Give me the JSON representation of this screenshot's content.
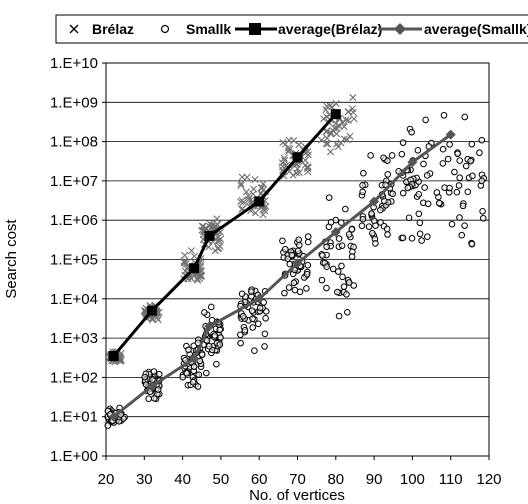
{
  "chart_data": {
    "type": "scatter",
    "title": "",
    "xlabel": "No. of vertices",
    "ylabel": "Search cost",
    "y_scale": "log",
    "xlim": [
      20,
      120
    ],
    "ylim": [
      1,
      10000000000
    ],
    "x_ticks": [
      "20",
      "30",
      "40",
      "50",
      "60",
      "70",
      "80",
      "90",
      "100",
      "110",
      "120"
    ],
    "y_ticks": [
      "1.E+00",
      "1.E+01",
      "1.E+02",
      "1.E+03",
      "1.E+04",
      "1.E+05",
      "1.E+06",
      "1.E+07",
      "1.E+08",
      "1.E+09",
      "1.E+10"
    ],
    "grid": "horizontal",
    "legend_position": "top",
    "series": [
      {
        "name": "Brélaz",
        "kind": "scatter",
        "marker": "x",
        "color": "#707070",
        "clusters": [
          {
            "x": [
              21,
              24
            ],
            "y_range": [
              200,
              500
            ]
          },
          {
            "x": [
              30,
              34
            ],
            "y_range": [
              2500,
              8000
            ]
          },
          {
            "x": [
              40,
              45
            ],
            "y_range": [
              15000,
              200000
            ]
          },
          {
            "x": [
              45,
              50
            ],
            "y_range": [
              100000,
              1500000
            ]
          },
          {
            "x": [
              55,
              62
            ],
            "y_range": [
              500000,
              20000000
            ]
          },
          {
            "x": [
              66,
              73
            ],
            "y_range": [
              5000000,
              200000000
            ]
          },
          {
            "x": [
              76,
              85
            ],
            "y_range": [
              20000000,
              3000000000
            ]
          }
        ]
      },
      {
        "name": "Smallk",
        "kind": "scatter",
        "marker": "o",
        "color": "#000000",
        "clusters": [
          {
            "x": [
              20,
              25
            ],
            "y_range": [
              5,
              20
            ]
          },
          {
            "x": [
              30,
              34
            ],
            "y_range": [
              20,
              200
            ]
          },
          {
            "x": [
              40,
              45
            ],
            "y_range": [
              30,
              2000
            ]
          },
          {
            "x": [
              45,
              50
            ],
            "y_range": [
              80,
              10000
            ]
          },
          {
            "x": [
              55,
              62
            ],
            "y_range": [
              300,
              100000
            ]
          },
          {
            "x": [
              66,
              73
            ],
            "y_range": [
              5000,
              1000000
            ]
          },
          {
            "x": [
              76,
              85
            ],
            "y_range": [
              2000,
              10000000
            ]
          },
          {
            "x": [
              86,
              95
            ],
            "y_range": [
              50000,
              200000000
            ]
          },
          {
            "x": [
              96,
              105
            ],
            "y_range": [
              100000,
              1000000000
            ]
          },
          {
            "x": [
              106,
              119
            ],
            "y_range": [
              50000,
              3000000000
            ]
          }
        ]
      },
      {
        "name": "average(Brélaz)",
        "kind": "line",
        "marker": "square",
        "color": "#000000",
        "x": [
          22,
          32,
          43,
          47,
          60,
          70,
          80
        ],
        "y": [
          350,
          5000,
          60000,
          400000,
          3000000,
          40000000,
          500000000
        ]
      },
      {
        "name": "average(Smallk)",
        "kind": "line",
        "marker": "diamond",
        "color": "#555555",
        "x": [
          22,
          32,
          43,
          47,
          60,
          70,
          80,
          90,
          100,
          110
        ],
        "y": [
          10,
          60,
          300,
          2000,
          10000,
          80000,
          500000,
          3000000,
          30000000,
          150000000
        ]
      }
    ]
  },
  "legend": [
    {
      "marker": "x-icon",
      "label": "Brélaz"
    },
    {
      "marker": "circle-icon",
      "label": "Smallk"
    },
    {
      "marker": "square-line-icon",
      "label": "average(Brélaz)"
    },
    {
      "marker": "diamond-line-icon",
      "label": "average(Smallk)"
    }
  ]
}
